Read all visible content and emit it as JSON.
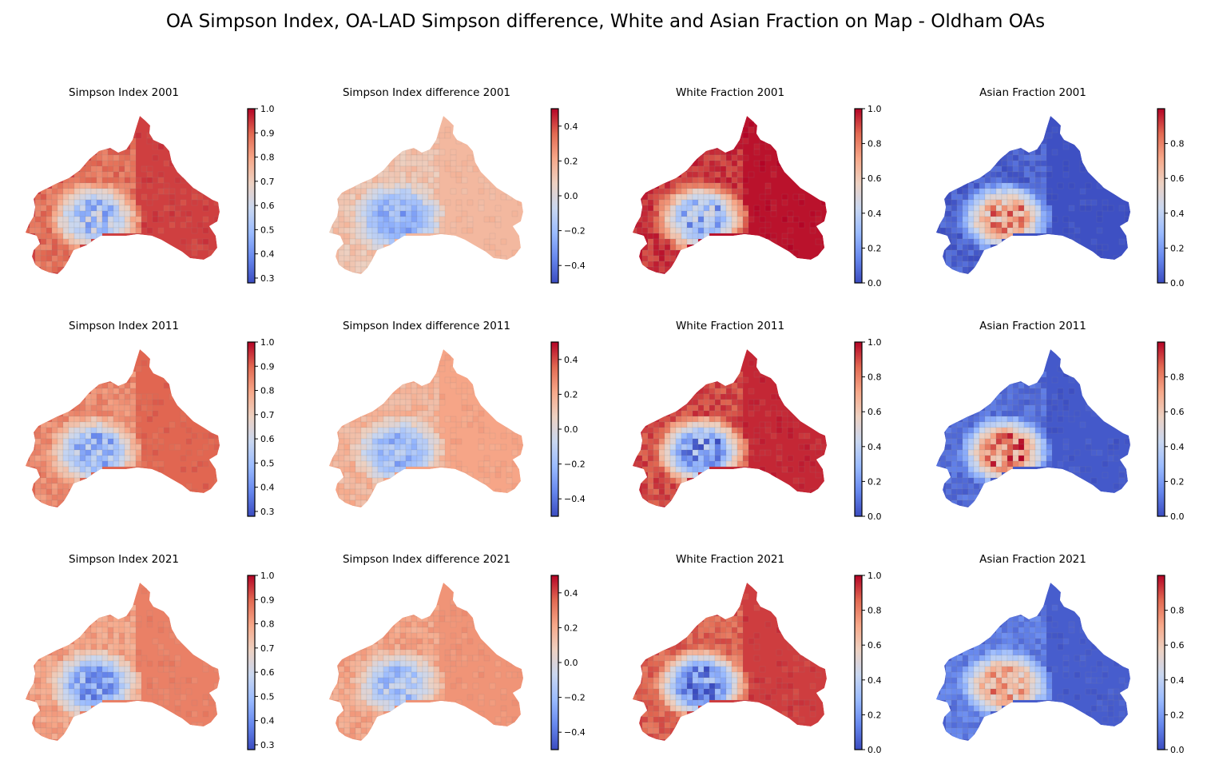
{
  "figure": {
    "title": "OA Simpson Index, OA-LAD Simpson difference, White and Asian Fraction on Map - Oldham OAs"
  },
  "colormap": {
    "name": "coolwarm",
    "stops": [
      "#3b4cc0",
      "#6788ee",
      "#9abbff",
      "#c9d7f0",
      "#edd1c2",
      "#f7a889",
      "#e26952",
      "#b40426"
    ]
  },
  "colorbars": {
    "simpson": {
      "vmin": 0.28,
      "vmax": 1.0,
      "ticks": [
        "1.0",
        "0.9",
        "0.8",
        "0.7",
        "0.6",
        "0.5",
        "0.4",
        "0.3"
      ],
      "tick_values": [
        1.0,
        0.9,
        0.8,
        0.7,
        0.6,
        0.5,
        0.4,
        0.3
      ]
    },
    "difference": {
      "vmin": -0.5,
      "vmax": 0.5,
      "ticks": [
        "0.4",
        "0.2",
        "0.0",
        "−0.2",
        "−0.4"
      ],
      "tick_values": [
        0.4,
        0.2,
        0.0,
        -0.2,
        -0.4
      ]
    },
    "white": {
      "vmin": 0.0,
      "vmax": 1.0,
      "ticks": [
        "1.0",
        "0.8",
        "0.6",
        "0.4",
        "0.2",
        "0.0"
      ],
      "tick_values": [
        1.0,
        0.8,
        0.6,
        0.4,
        0.2,
        0.0
      ]
    },
    "asian": {
      "vmin": 0.0,
      "vmax": 1.0,
      "ticks": [
        "0.8",
        "0.6",
        "0.4",
        "0.2",
        "0.0"
      ],
      "tick_values": [
        0.8,
        0.6,
        0.4,
        0.2,
        0.0
      ]
    }
  },
  "panels": [
    {
      "title": "Simpson Index 2001",
      "colorbar": "simpson",
      "base_value": 0.94,
      "core_value": 0.52,
      "mid_value": 0.88
    },
    {
      "title": "Simpson Index difference 2001",
      "colorbar": "difference",
      "base_value": 0.16,
      "core_value": -0.25,
      "mid_value": 0.12
    },
    {
      "title": "White Fraction 2001",
      "colorbar": "white",
      "base_value": 0.98,
      "core_value": 0.3,
      "mid_value": 0.93
    },
    {
      "title": "Asian Fraction 2001",
      "colorbar": "asian",
      "base_value": 0.01,
      "core_value": 0.72,
      "mid_value": 0.05
    },
    {
      "title": "Simpson Index 2011",
      "colorbar": "simpson",
      "base_value": 0.9,
      "core_value": 0.5,
      "mid_value": 0.84
    },
    {
      "title": "Simpson Index difference 2011",
      "colorbar": "difference",
      "base_value": 0.22,
      "core_value": -0.2,
      "mid_value": 0.17
    },
    {
      "title": "White Fraction 2011",
      "colorbar": "white",
      "base_value": 0.95,
      "core_value": 0.2,
      "mid_value": 0.9
    },
    {
      "title": "Asian Fraction 2011",
      "colorbar": "asian",
      "base_value": 0.03,
      "core_value": 0.78,
      "mid_value": 0.08
    },
    {
      "title": "Simpson Index 2021",
      "colorbar": "simpson",
      "base_value": 0.86,
      "core_value": 0.45,
      "mid_value": 0.8
    },
    {
      "title": "Simpson Index difference 2021",
      "colorbar": "difference",
      "base_value": 0.26,
      "core_value": -0.15,
      "mid_value": 0.22
    },
    {
      "title": "White Fraction 2021",
      "colorbar": "white",
      "base_value": 0.92,
      "core_value": 0.15,
      "mid_value": 0.86
    },
    {
      "title": "Asian Fraction 2021",
      "colorbar": "asian",
      "base_value": 0.04,
      "core_value": 0.7,
      "mid_value": 0.12
    }
  ]
}
